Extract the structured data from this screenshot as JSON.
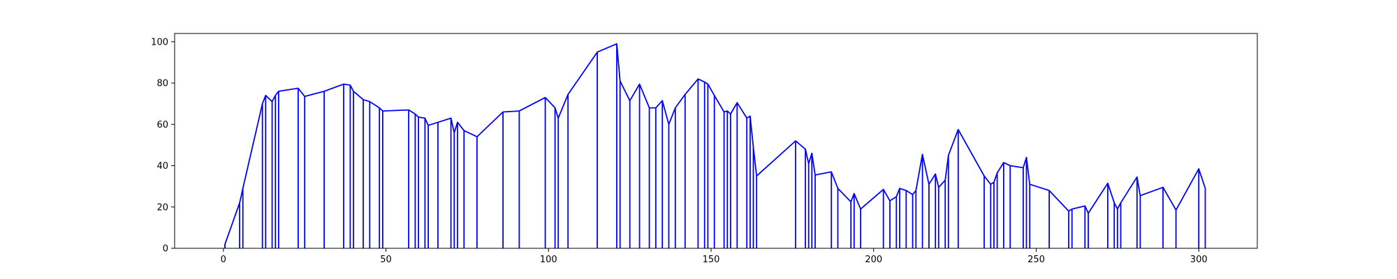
{
  "chart_data": {
    "type": "line",
    "title": "",
    "xlabel": "",
    "ylabel": "",
    "xlim": [
      -15,
      318
    ],
    "ylim": [
      0,
      104
    ],
    "xticks": [
      0,
      50,
      100,
      150,
      200,
      250,
      300
    ],
    "yticks": [
      0,
      20,
      40,
      60,
      80,
      100
    ],
    "grid": false,
    "line_color": "#0000ff",
    "series": [
      {
        "style": "vertical-drop",
        "points": [
          [
            0.5,
            0
          ],
          [
            0.5,
            2
          ],
          [
            5,
            22
          ],
          [
            6,
            29
          ],
          [
            12,
            70
          ],
          [
            13,
            74
          ],
          [
            15,
            71
          ],
          [
            16,
            74
          ],
          [
            17,
            76
          ],
          [
            23,
            77.5
          ],
          [
            25,
            73.5
          ],
          [
            31,
            76
          ],
          [
            37,
            79.5
          ],
          [
            39,
            79
          ],
          [
            40,
            76
          ],
          [
            43,
            72
          ],
          [
            45,
            71
          ],
          [
            48,
            68
          ],
          [
            49,
            66.5
          ],
          [
            57,
            67
          ],
          [
            59,
            65
          ],
          [
            60,
            63.5
          ],
          [
            62,
            63
          ],
          [
            63,
            59.5
          ],
          [
            66,
            61
          ],
          [
            70,
            63
          ],
          [
            71,
            56
          ],
          [
            72,
            61
          ],
          [
            74,
            57
          ],
          [
            78,
            54
          ],
          [
            86,
            66
          ],
          [
            91,
            66.5
          ],
          [
            99,
            73
          ],
          [
            102,
            68
          ],
          [
            103,
            63
          ],
          [
            106,
            74.5
          ],
          [
            115,
            95
          ],
          [
            121,
            99
          ],
          [
            122,
            81
          ],
          [
            125,
            71.5
          ],
          [
            128,
            79.5
          ],
          [
            131,
            68
          ],
          [
            133,
            68
          ],
          [
            135,
            71.5
          ],
          [
            137,
            60
          ],
          [
            139,
            68
          ],
          [
            142,
            74.5
          ],
          [
            146,
            82
          ],
          [
            148,
            80.5
          ],
          [
            149,
            79.5
          ],
          [
            151,
            74
          ],
          [
            154,
            66
          ],
          [
            155,
            66.5
          ],
          [
            156,
            65
          ],
          [
            158,
            70.5
          ],
          [
            161,
            63
          ],
          [
            162,
            64
          ],
          [
            163,
            49
          ],
          [
            164,
            35
          ],
          [
            176,
            52
          ],
          [
            179,
            48
          ],
          [
            180,
            41
          ],
          [
            181,
            46
          ],
          [
            182,
            35.5
          ],
          [
            187,
            37
          ],
          [
            189,
            29
          ],
          [
            193,
            22.5
          ],
          [
            194,
            26.5
          ],
          [
            196,
            19
          ],
          [
            203,
            28.5
          ],
          [
            205,
            23
          ],
          [
            207,
            25
          ],
          [
            208,
            29
          ],
          [
            210,
            28
          ],
          [
            212,
            26
          ],
          [
            213,
            28
          ],
          [
            215,
            45.5
          ],
          [
            217,
            31
          ],
          [
            219,
            36
          ],
          [
            220,
            29.5
          ],
          [
            222,
            33
          ],
          [
            223,
            45
          ],
          [
            226,
            57.5
          ],
          [
            234,
            35
          ],
          [
            236,
            31
          ],
          [
            237,
            32
          ],
          [
            238,
            36.5
          ],
          [
            240,
            41.5
          ],
          [
            242,
            40
          ],
          [
            246,
            39
          ],
          [
            247,
            44
          ],
          [
            248,
            31
          ],
          [
            254,
            28
          ],
          [
            260,
            18
          ],
          [
            261,
            19
          ],
          [
            265,
            20.5
          ],
          [
            266,
            17
          ],
          [
            272,
            31.5
          ],
          [
            274,
            22
          ],
          [
            275,
            19
          ],
          [
            276,
            22
          ],
          [
            281,
            34.5
          ],
          [
            282,
            25.5
          ],
          [
            289,
            29.5
          ],
          [
            293,
            18.5
          ],
          [
            300,
            38.5
          ],
          [
            302,
            29
          ]
        ]
      }
    ]
  }
}
